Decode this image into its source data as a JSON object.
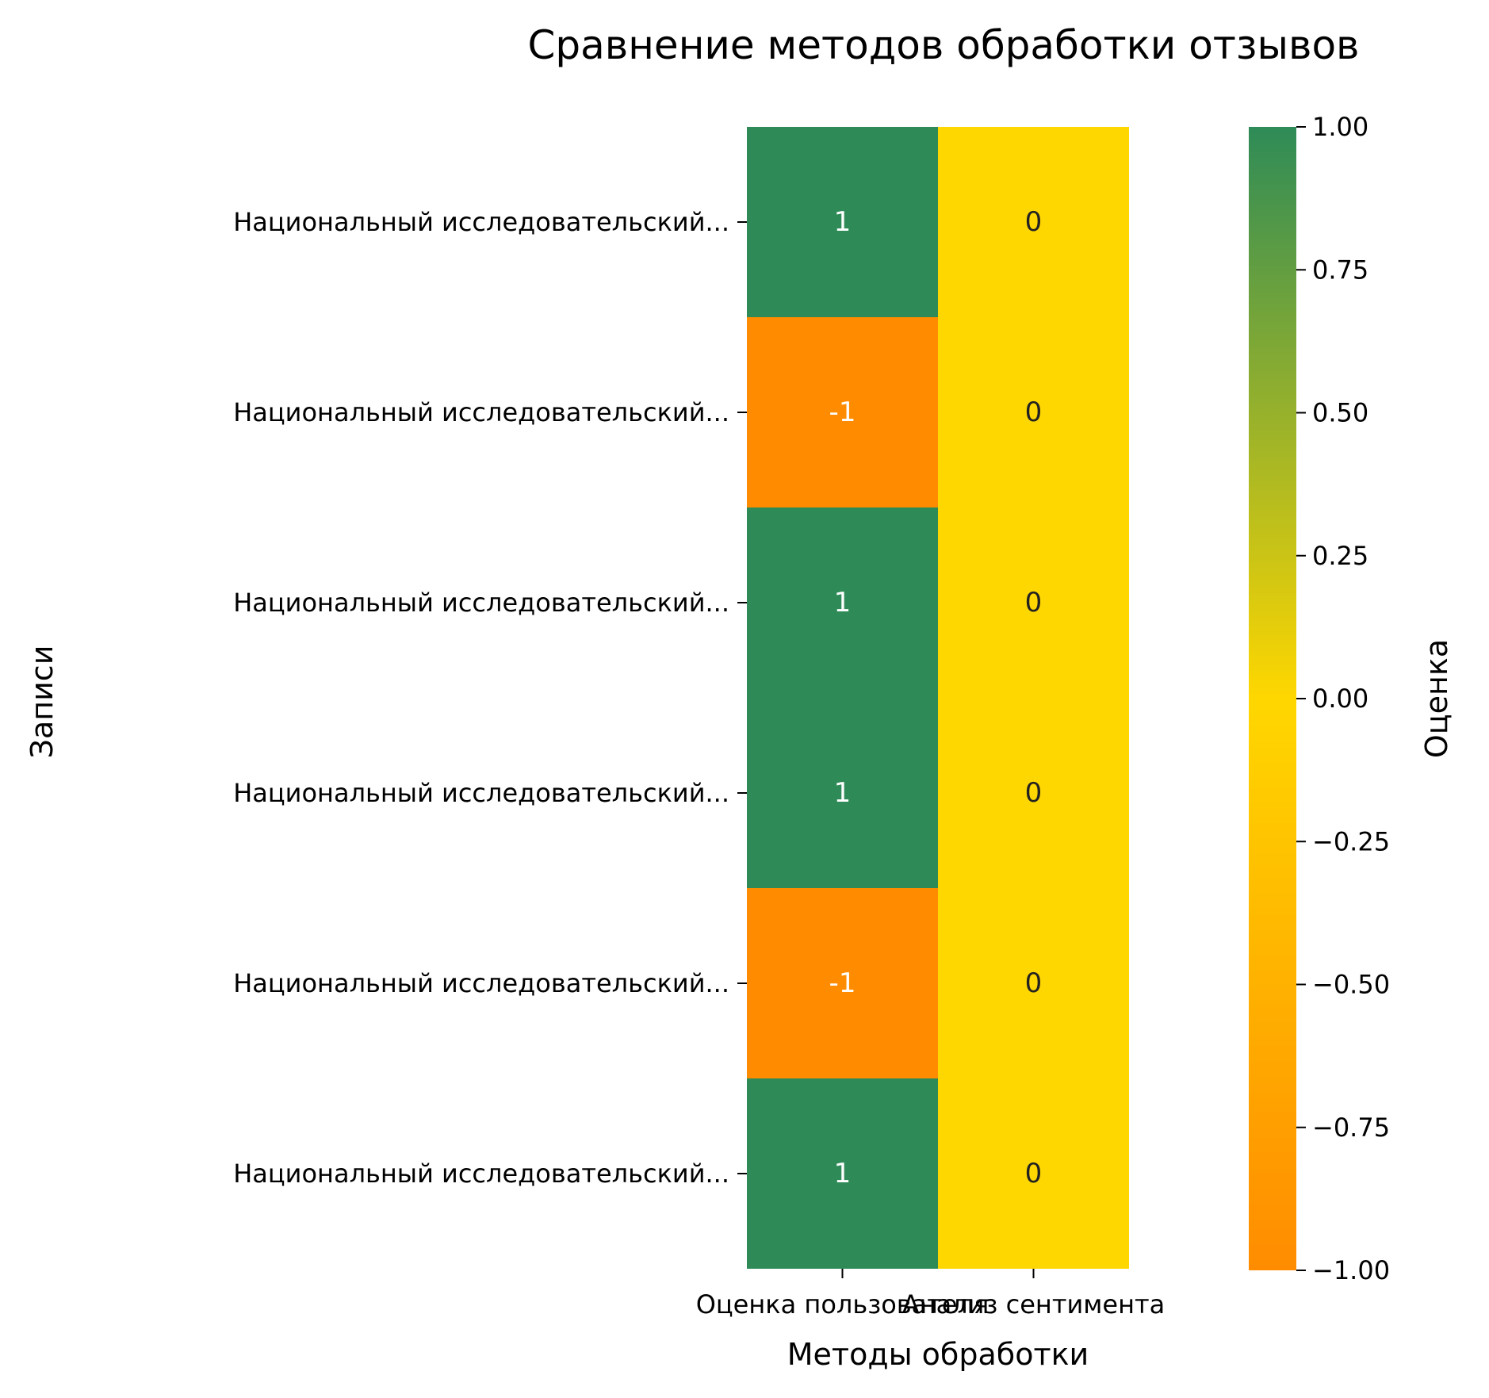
{
  "chart_data": {
    "type": "heatmap",
    "title": "Сравнение методов обработки отзывов",
    "xlabel": "Методы обработки",
    "ylabel": "Записи",
    "x_categories": [
      "Оценка пользователя",
      "Анализ сентимента"
    ],
    "y_categories": [
      "Национальный исследовательский...",
      "Национальный исследовательский...",
      "Национальный исследовательский...",
      "Национальный исследовательский...",
      "Национальный исследовательский...",
      "Национальный исследовательский..."
    ],
    "values": [
      [
        1,
        0
      ],
      [
        -1,
        0
      ],
      [
        1,
        0
      ],
      [
        1,
        0
      ],
      [
        -1,
        0
      ],
      [
        1,
        0
      ]
    ],
    "cell_labels": [
      [
        "1",
        "0"
      ],
      [
        "-1",
        "0"
      ],
      [
        "1",
        "0"
      ],
      [
        "1",
        "0"
      ],
      [
        "-1",
        "0"
      ],
      [
        "1",
        "0"
      ]
    ],
    "colorbar": {
      "label": "Оценка",
      "range": [
        -1,
        1
      ],
      "ticks": [
        {
          "value": 1.0,
          "label": "1.00"
        },
        {
          "value": 0.75,
          "label": "0.75"
        },
        {
          "value": 0.5,
          "label": "0.50"
        },
        {
          "value": 0.25,
          "label": "0.25"
        },
        {
          "value": 0.0,
          "label": "0.00"
        },
        {
          "value": -0.25,
          "label": "−0.25"
        },
        {
          "value": -0.5,
          "label": "−0.50"
        },
        {
          "value": -0.75,
          "label": "−0.75"
        },
        {
          "value": -1.0,
          "label": "−1.00"
        }
      ],
      "colors": {
        "low": "#ff8c00",
        "mid": "#ffd700",
        "high": "#2e8b57"
      }
    }
  }
}
